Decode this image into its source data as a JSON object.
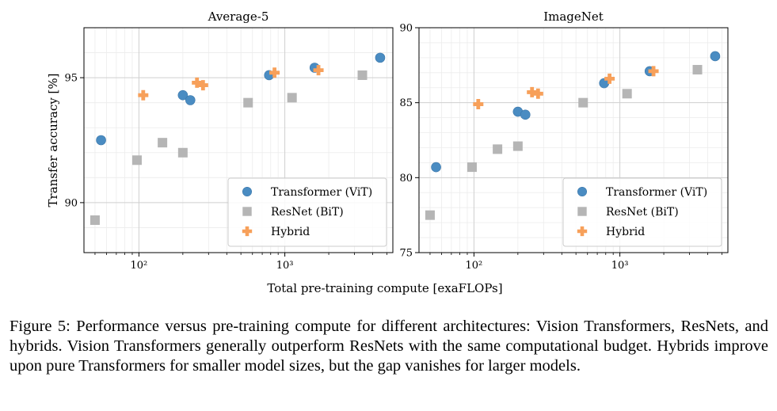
{
  "chart_data": [
    {
      "type": "scatter",
      "title": "Average-5",
      "xlabel": "Total pre-training compute [exaFLOPs]",
      "ylabel": "Transfer accuracy [%]",
      "xscale": "log",
      "xlim": [
        42,
        5500
      ],
      "ylim": [
        88,
        97
      ],
      "xticks": [
        100,
        1000
      ],
      "xtick_labels": [
        "10²",
        "10³"
      ],
      "yticks": [
        90,
        95
      ],
      "ytick_labels": [
        "90",
        "95"
      ],
      "grid": true,
      "legend_position": "lower-right",
      "series": [
        {
          "name": "Transformer (ViT)",
          "color": "#4a8cc2",
          "marker": "circle",
          "points": [
            [
              55,
              92.5
            ],
            [
              200,
              94.3
            ],
            [
              225,
              94.1
            ],
            [
              780,
              95.1
            ],
            [
              1600,
              95.4
            ],
            [
              4500,
              95.8
            ]
          ]
        },
        {
          "name": "ResNet (BiT)",
          "color": "#b5b5b5",
          "marker": "square",
          "points": [
            [
              50,
              89.3
            ],
            [
              97,
              91.7
            ],
            [
              145,
              92.4
            ],
            [
              200,
              92.0
            ],
            [
              560,
              94.0
            ],
            [
              1120,
              94.2
            ],
            [
              3400,
              95.1
            ]
          ]
        },
        {
          "name": "Hybrid",
          "color": "#f7a05a",
          "marker": "plus",
          "points": [
            [
              107,
              94.3
            ],
            [
              250,
              94.8
            ],
            [
              275,
              94.7
            ],
            [
              850,
              95.2
            ],
            [
              1700,
              95.3
            ]
          ]
        }
      ]
    },
    {
      "type": "scatter",
      "title": "ImageNet",
      "xscale": "log",
      "xlim": [
        42,
        5500
      ],
      "ylim": [
        75,
        90
      ],
      "xticks": [
        100,
        1000
      ],
      "xtick_labels": [
        "10²",
        "10³"
      ],
      "yticks": [
        75,
        80,
        85,
        90
      ],
      "ytick_labels": [
        "75",
        "80",
        "85",
        "90"
      ],
      "grid": true,
      "legend_position": "lower-right",
      "series": [
        {
          "name": "Transformer (ViT)",
          "color": "#4a8cc2",
          "marker": "circle",
          "points": [
            [
              55,
              80.7
            ],
            [
              200,
              84.4
            ],
            [
              225,
              84.2
            ],
            [
              780,
              86.3
            ],
            [
              1600,
              87.1
            ],
            [
              4500,
              88.1
            ]
          ]
        },
        {
          "name": "ResNet (BiT)",
          "color": "#b5b5b5",
          "marker": "square",
          "points": [
            [
              50,
              77.5
            ],
            [
              97,
              80.7
            ],
            [
              145,
              81.9
            ],
            [
              200,
              82.1
            ],
            [
              560,
              85.0
            ],
            [
              1120,
              85.6
            ],
            [
              3400,
              87.2
            ]
          ]
        },
        {
          "name": "Hybrid",
          "color": "#f7a05a",
          "marker": "plus",
          "points": [
            [
              107,
              84.9
            ],
            [
              250,
              85.7
            ],
            [
              275,
              85.6
            ],
            [
              850,
              86.6
            ],
            [
              1700,
              87.1
            ]
          ]
        }
      ]
    }
  ],
  "caption": "Figure 5: Performance versus pre-training compute for different architectures: Vision Transformers, ResNets, and hybrids.  Vision Transformers generally outperform ResNets with the same computational budget.  Hybrids improve upon pure Transformers for smaller model sizes, but the gap vanishes for larger models."
}
